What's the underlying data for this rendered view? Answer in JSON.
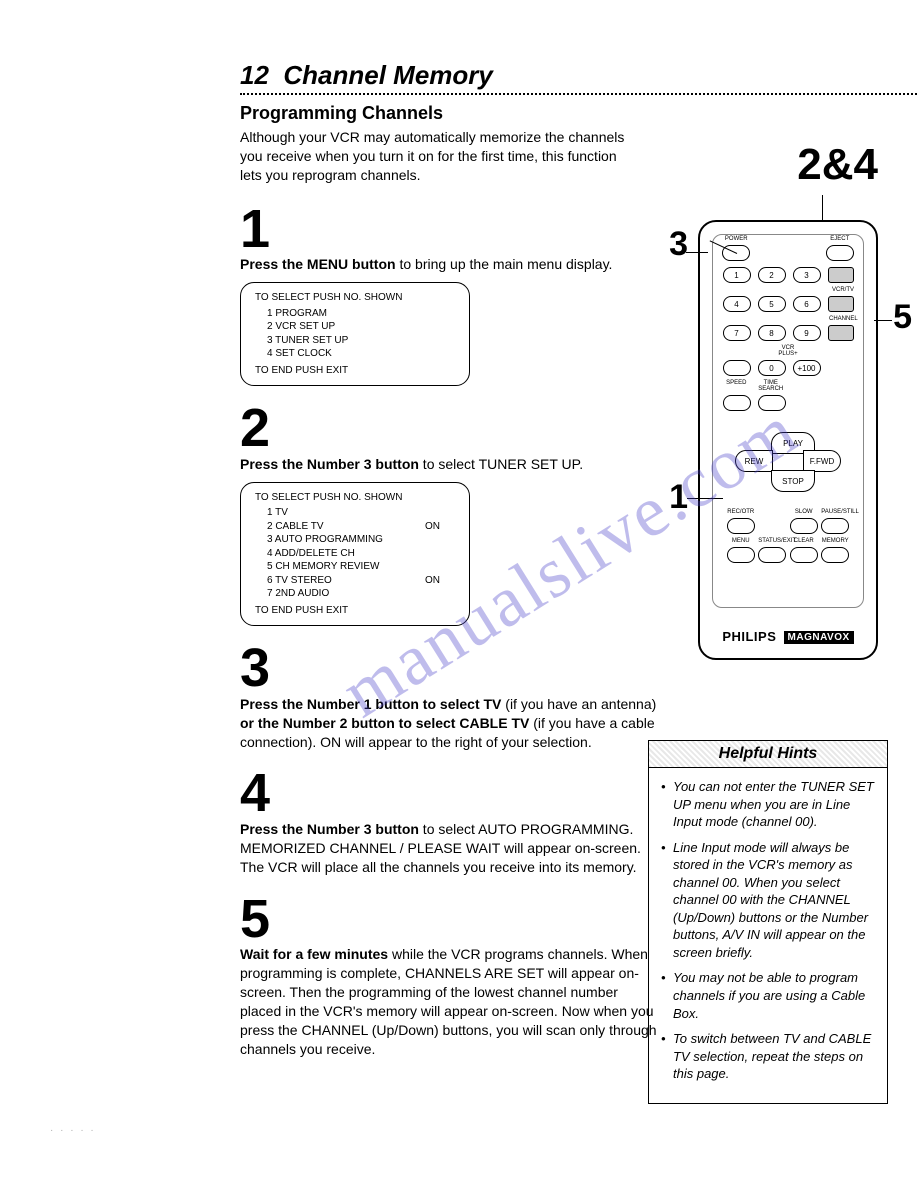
{
  "page": {
    "chapter_num": "12",
    "chapter_title": "Channel Memory",
    "section": "Programming Channels",
    "intro": "Although your VCR may automatically memorize the channels you receive when you turn it on for the first time, this function lets you reprogram channels."
  },
  "callouts": {
    "top_right": "2&4",
    "p3": "3",
    "p5": "5",
    "p1": "1"
  },
  "steps": {
    "s1": {
      "num": "1",
      "bold_a": "Press the MENU button",
      "rest_a": " to bring up the main menu display."
    },
    "s2": {
      "num": "2",
      "bold_a": "Press the Number 3 button",
      "rest_a": " to select TUNER SET UP."
    },
    "s3": {
      "num": "3",
      "bold_a": "Press the Number 1 button to select TV",
      "rest_a": " (if you have an antenna) ",
      "bold_b": "or the Number 2 button to select CABLE TV",
      "rest_b": " (if you have a cable connection). ON will appear to the right of your selection."
    },
    "s4": {
      "num": "4",
      "bold_a": "Press the Number 3 button",
      "rest_a": " to select AUTO PROGRAMMING. MEMORIZED CHANNEL / PLEASE WAIT will appear on-screen. The VCR will place all the channels you receive into its memory."
    },
    "s5": {
      "num": "5",
      "bold_a": "Wait for a few minutes",
      "rest_a": " while the VCR programs channels. When programming is complete, CHANNELS ARE SET will appear on-screen. Then the programming of the lowest channel number placed in the VCR's memory will appear on-screen. Now when you press the CHANNEL (Up/Down) buttons, you will scan only through channels you receive."
    }
  },
  "menu1": {
    "header": "TO SELECT PUSH NO. SHOWN",
    "items": [
      {
        "label": "1 PROGRAM",
        "state": ""
      },
      {
        "label": "2 VCR SET UP",
        "state": ""
      },
      {
        "label": "3 TUNER SET UP",
        "state": ""
      },
      {
        "label": "4 SET CLOCK",
        "state": ""
      }
    ],
    "footer": "TO END PUSH EXIT"
  },
  "menu2": {
    "header": "TO SELECT PUSH NO. SHOWN",
    "items": [
      {
        "label": "1 TV",
        "state": ""
      },
      {
        "label": "2 CABLE TV",
        "state": "ON"
      },
      {
        "label": "3 AUTO PROGRAMMING",
        "state": ""
      },
      {
        "label": "4 ADD/DELETE CH",
        "state": ""
      },
      {
        "label": "5 CH MEMORY REVIEW",
        "state": ""
      },
      {
        "label": "6 TV STEREO",
        "state": "ON"
      },
      {
        "label": "7 2ND AUDIO",
        "state": ""
      }
    ],
    "footer": "TO END PUSH EXIT"
  },
  "remote": {
    "row0_labels": [
      "POWER",
      "",
      "",
      "EJECT"
    ],
    "row1": [
      "1",
      "2",
      "3"
    ],
    "row1_side": "VCR/TV",
    "row2": [
      "4",
      "5",
      "6"
    ],
    "row3": [
      "7",
      "8",
      "9"
    ],
    "row3_side": "CHANNEL",
    "row4_label": "VCR PLUS+",
    "row4": [
      "",
      "0",
      "+100"
    ],
    "row5_labels": [
      "SPEED",
      "TIME SEARCH"
    ],
    "transport": {
      "play": "PLAY",
      "rew": "REW",
      "ffwd": "F.FWD",
      "stop": "STOP"
    },
    "rec_row_labels": [
      "REC/OTR",
      "",
      "SLOW",
      "PAUSE/STILL"
    ],
    "bottom_labels": [
      "MENU",
      "STATUS/EXIT",
      "CLEAR",
      "MEMORY"
    ],
    "brand": "PHILIPS",
    "brand2": "MAGNAVOX"
  },
  "hints": {
    "title": "Helpful Hints",
    "items": [
      "You can not enter the TUNER SET UP menu when you are in Line Input mode (channel 00).",
      "Line Input mode will always be stored in the VCR's memory as channel 00. When you select channel 00 with the CHANNEL (Up/Down) buttons or the Number buttons, A/V IN will appear on the screen briefly.",
      "You may not be able to program channels if you are using a Cable Box.",
      "To switch between TV and CABLE TV selection, repeat the steps on this page."
    ]
  },
  "watermark": "manualslive.com",
  "colors": {
    "text": "#000000",
    "background": "#ffffff",
    "watermark": "rgba(72,63,200,0.35)",
    "hints_bg_stripe": "#e8e8e8"
  }
}
